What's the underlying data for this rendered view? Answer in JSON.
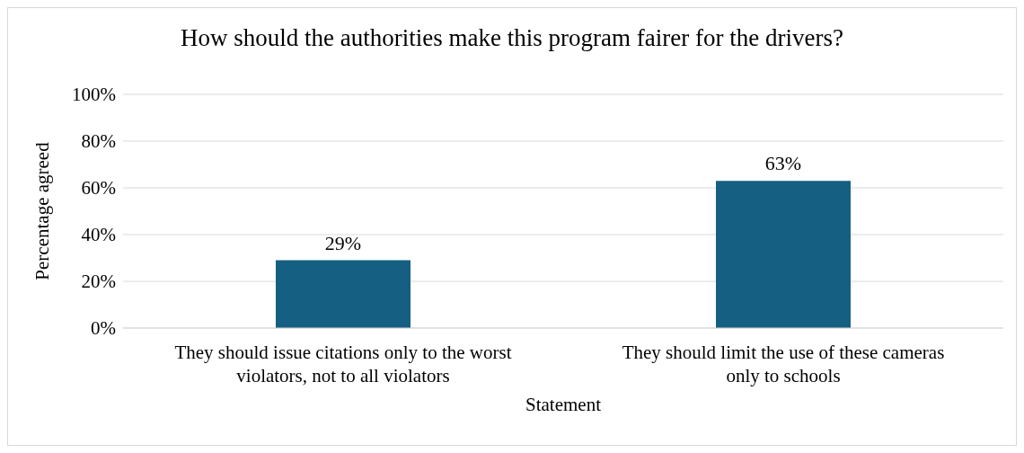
{
  "chart_data": {
    "type": "bar",
    "title": "How should the authorities make this program fairer for the drivers?",
    "xlabel": "Statement",
    "ylabel": "Percentage agreed",
    "categories": [
      "They should issue citations only to the worst violators, not to all violators",
      "They should limit the use of these cameras only to schools"
    ],
    "values": [
      29,
      63
    ],
    "color": "#156082",
    "value_labels": [
      "29%",
      "63%"
    ],
    "ylim": [
      0,
      100
    ],
    "yticks": [
      {
        "value": 0,
        "label": "0%"
      },
      {
        "value": 20,
        "label": "20%"
      },
      {
        "value": 40,
        "label": "40%"
      },
      {
        "value": 60,
        "label": "60%"
      },
      {
        "value": 80,
        "label": "80%"
      },
      {
        "value": 100,
        "label": "100%"
      }
    ],
    "grid": "y",
    "legend": false
  }
}
